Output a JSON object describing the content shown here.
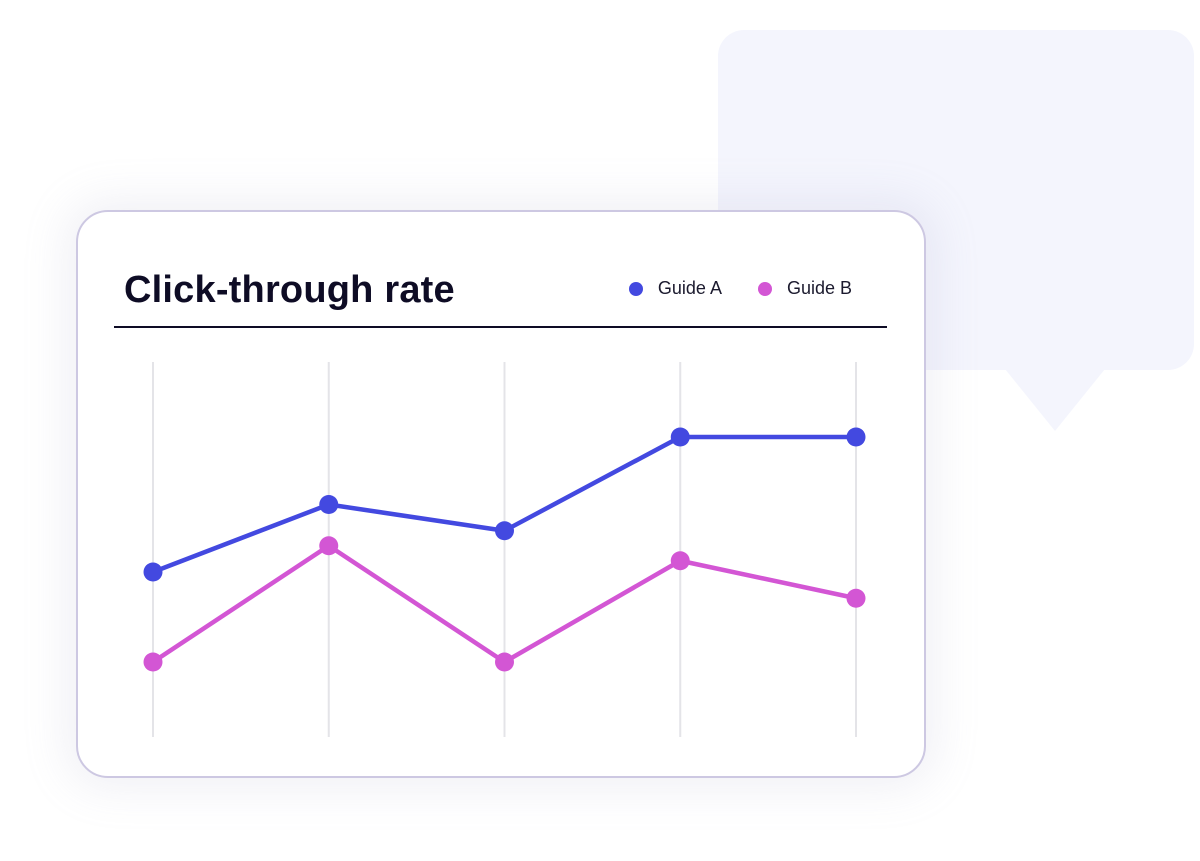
{
  "colors": {
    "guide_a": "#4349e0",
    "guide_b": "#d356d4",
    "gridline": "#e4e4e8",
    "bubble": "#f4f5fd"
  },
  "chart_data": {
    "type": "line",
    "title": "Click-through rate",
    "xlabel": "",
    "ylabel": "",
    "x": [
      1,
      2,
      3,
      4,
      5
    ],
    "ylim": [
      0,
      10
    ],
    "grid": "vertical",
    "legend": "top-right",
    "series": [
      {
        "name": "Guide A",
        "color": "#4349e0",
        "values": [
          4.4,
          6.2,
          5.5,
          8.0,
          8.0
        ]
      },
      {
        "name": "Guide B",
        "color": "#d356d4",
        "values": [
          2.0,
          5.1,
          2.0,
          4.7,
          3.7
        ]
      }
    ]
  }
}
